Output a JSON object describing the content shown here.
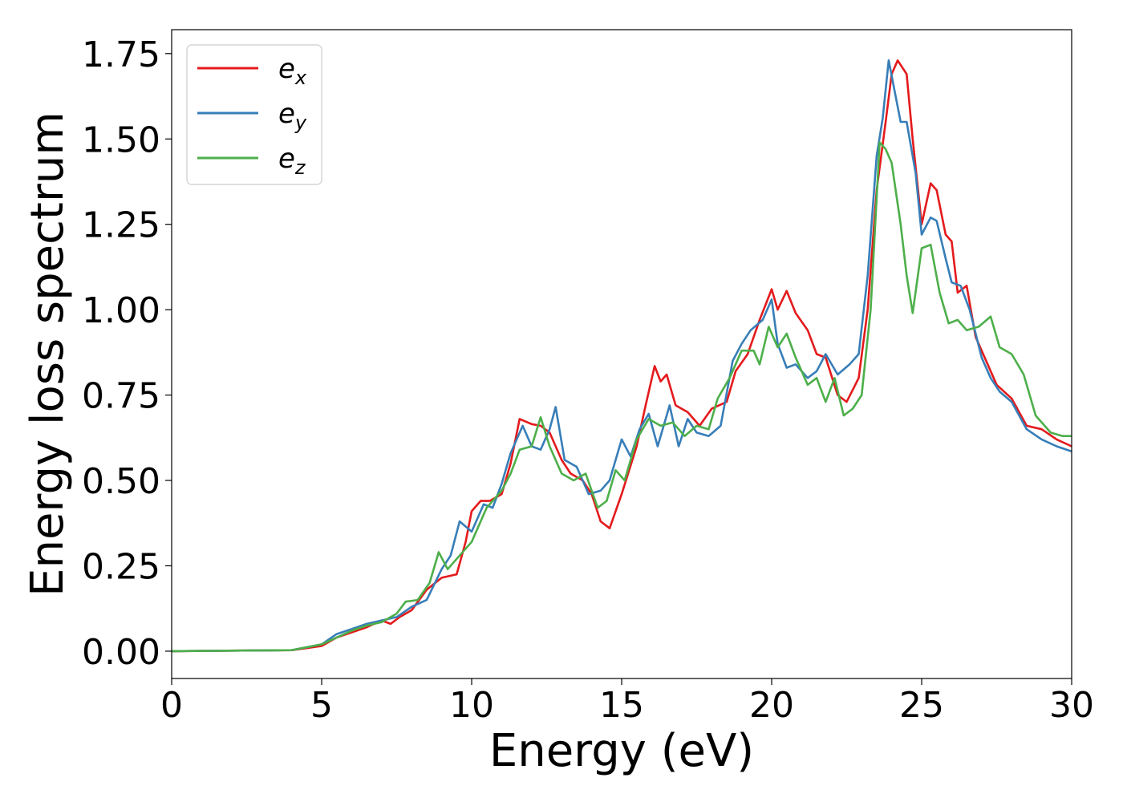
{
  "chart_data": {
    "type": "line",
    "title": "",
    "xlabel": "Energy (eV)",
    "ylabel": "Energy loss spectrum",
    "xlim": [
      0,
      30
    ],
    "ylim": [
      -0.08,
      1.82
    ],
    "xticks": [
      0,
      5,
      10,
      15,
      20,
      25,
      30
    ],
    "xtick_labels": [
      "0",
      "5",
      "10",
      "15",
      "20",
      "25",
      "30"
    ],
    "yticks": [
      0.0,
      0.25,
      0.5,
      0.75,
      1.0,
      1.25,
      1.5,
      1.75
    ],
    "ytick_labels": [
      "0.00",
      "0.25",
      "0.50",
      "0.75",
      "1.00",
      "1.25",
      "1.50",
      "1.75"
    ],
    "grid": false,
    "legend_position": "top-left",
    "series": [
      {
        "name": "e",
        "subscript": "x",
        "color": "#e41a1c",
        "points": [
          [
            0,
            0
          ],
          [
            4,
            0.003
          ],
          [
            5,
            0.015
          ],
          [
            5.5,
            0.04
          ],
          [
            6,
            0.055
          ],
          [
            6.5,
            0.07
          ],
          [
            7,
            0.09
          ],
          [
            7.3,
            0.08
          ],
          [
            7.6,
            0.1
          ],
          [
            8,
            0.12
          ],
          [
            8.5,
            0.18
          ],
          [
            9,
            0.215
          ],
          [
            9.5,
            0.225
          ],
          [
            9.8,
            0.32
          ],
          [
            10,
            0.41
          ],
          [
            10.3,
            0.44
          ],
          [
            10.6,
            0.44
          ],
          [
            11,
            0.46
          ],
          [
            11.3,
            0.55
          ],
          [
            11.6,
            0.68
          ],
          [
            12,
            0.665
          ],
          [
            12.3,
            0.66
          ],
          [
            12.6,
            0.64
          ],
          [
            13,
            0.56
          ],
          [
            13.3,
            0.52
          ],
          [
            13.7,
            0.5
          ],
          [
            14,
            0.46
          ],
          [
            14.3,
            0.38
          ],
          [
            14.6,
            0.36
          ],
          [
            15,
            0.46
          ],
          [
            15.5,
            0.6
          ],
          [
            15.8,
            0.72
          ],
          [
            16.1,
            0.835
          ],
          [
            16.3,
            0.79
          ],
          [
            16.5,
            0.81
          ],
          [
            16.8,
            0.72
          ],
          [
            17.2,
            0.7
          ],
          [
            17.6,
            0.66
          ],
          [
            18,
            0.71
          ],
          [
            18.5,
            0.73
          ],
          [
            18.8,
            0.82
          ],
          [
            19.2,
            0.87
          ],
          [
            19.6,
            0.97
          ],
          [
            20,
            1.06
          ],
          [
            20.2,
            1.0
          ],
          [
            20.5,
            1.055
          ],
          [
            20.8,
            0.99
          ],
          [
            21.2,
            0.94
          ],
          [
            21.5,
            0.87
          ],
          [
            21.8,
            0.86
          ],
          [
            22.2,
            0.75
          ],
          [
            22.5,
            0.73
          ],
          [
            22.9,
            0.8
          ],
          [
            23.2,
            1.0
          ],
          [
            23.5,
            1.35
          ],
          [
            23.8,
            1.55
          ],
          [
            24,
            1.69
          ],
          [
            24.2,
            1.73
          ],
          [
            24.5,
            1.69
          ],
          [
            24.7,
            1.5
          ],
          [
            25,
            1.25
          ],
          [
            25.3,
            1.37
          ],
          [
            25.5,
            1.35
          ],
          [
            25.8,
            1.22
          ],
          [
            26,
            1.2
          ],
          [
            26.2,
            1.05
          ],
          [
            26.5,
            1.07
          ],
          [
            26.8,
            0.92
          ],
          [
            27.2,
            0.84
          ],
          [
            27.5,
            0.78
          ],
          [
            28,
            0.74
          ],
          [
            28.5,
            0.66
          ],
          [
            29,
            0.65
          ],
          [
            29.5,
            0.62
          ],
          [
            30,
            0.6
          ]
        ]
      },
      {
        "name": "e",
        "subscript": "y",
        "color": "#377eb8",
        "points": [
          [
            0,
            0
          ],
          [
            4,
            0.003
          ],
          [
            5,
            0.02
          ],
          [
            5.5,
            0.05
          ],
          [
            6,
            0.065
          ],
          [
            6.5,
            0.08
          ],
          [
            7,
            0.09
          ],
          [
            7.5,
            0.1
          ],
          [
            8,
            0.13
          ],
          [
            8.5,
            0.15
          ],
          [
            9,
            0.24
          ],
          [
            9.3,
            0.28
          ],
          [
            9.6,
            0.38
          ],
          [
            10,
            0.35
          ],
          [
            10.4,
            0.43
          ],
          [
            10.7,
            0.42
          ],
          [
            11,
            0.49
          ],
          [
            11.3,
            0.58
          ],
          [
            11.7,
            0.66
          ],
          [
            12,
            0.6
          ],
          [
            12.3,
            0.59
          ],
          [
            12.6,
            0.65
          ],
          [
            12.8,
            0.715
          ],
          [
            13.1,
            0.56
          ],
          [
            13.5,
            0.54
          ],
          [
            13.9,
            0.46
          ],
          [
            14.3,
            0.47
          ],
          [
            14.6,
            0.5
          ],
          [
            15,
            0.62
          ],
          [
            15.3,
            0.57
          ],
          [
            15.6,
            0.65
          ],
          [
            15.9,
            0.695
          ],
          [
            16.2,
            0.6
          ],
          [
            16.6,
            0.72
          ],
          [
            16.9,
            0.6
          ],
          [
            17.2,
            0.68
          ],
          [
            17.5,
            0.64
          ],
          [
            17.9,
            0.63
          ],
          [
            18.3,
            0.66
          ],
          [
            18.7,
            0.85
          ],
          [
            19,
            0.9
          ],
          [
            19.3,
            0.94
          ],
          [
            19.7,
            0.97
          ],
          [
            20,
            1.03
          ],
          [
            20.2,
            0.9
          ],
          [
            20.5,
            0.83
          ],
          [
            20.8,
            0.84
          ],
          [
            21.2,
            0.8
          ],
          [
            21.5,
            0.82
          ],
          [
            21.8,
            0.87
          ],
          [
            22.2,
            0.81
          ],
          [
            22.6,
            0.84
          ],
          [
            22.9,
            0.87
          ],
          [
            23.2,
            1.1
          ],
          [
            23.5,
            1.45
          ],
          [
            23.7,
            1.56
          ],
          [
            23.9,
            1.73
          ],
          [
            24.1,
            1.64
          ],
          [
            24.3,
            1.55
          ],
          [
            24.5,
            1.55
          ],
          [
            24.8,
            1.4
          ],
          [
            25,
            1.22
          ],
          [
            25.3,
            1.27
          ],
          [
            25.5,
            1.26
          ],
          [
            25.8,
            1.15
          ],
          [
            26,
            1.08
          ],
          [
            26.3,
            1.07
          ],
          [
            26.6,
            1.0
          ],
          [
            27,
            0.86
          ],
          [
            27.3,
            0.8
          ],
          [
            27.6,
            0.76
          ],
          [
            28,
            0.73
          ],
          [
            28.5,
            0.65
          ],
          [
            29,
            0.62
          ],
          [
            29.5,
            0.6
          ],
          [
            30,
            0.585
          ]
        ]
      },
      {
        "name": "e",
        "subscript": "z",
        "color": "#4daf4a",
        "points": [
          [
            0,
            0
          ],
          [
            4,
            0.003
          ],
          [
            5,
            0.02
          ],
          [
            5.5,
            0.04
          ],
          [
            6,
            0.06
          ],
          [
            6.5,
            0.075
          ],
          [
            7,
            0.085
          ],
          [
            7.5,
            0.11
          ],
          [
            7.8,
            0.145
          ],
          [
            8.2,
            0.15
          ],
          [
            8.6,
            0.2
          ],
          [
            8.9,
            0.29
          ],
          [
            9.2,
            0.24
          ],
          [
            9.6,
            0.28
          ],
          [
            10,
            0.32
          ],
          [
            10.5,
            0.42
          ],
          [
            11,
            0.47
          ],
          [
            11.3,
            0.52
          ],
          [
            11.6,
            0.59
          ],
          [
            12,
            0.6
          ],
          [
            12.3,
            0.685
          ],
          [
            12.6,
            0.6
          ],
          [
            13,
            0.52
          ],
          [
            13.4,
            0.5
          ],
          [
            13.8,
            0.52
          ],
          [
            14.2,
            0.42
          ],
          [
            14.5,
            0.44
          ],
          [
            14.8,
            0.53
          ],
          [
            15.1,
            0.5
          ],
          [
            15.5,
            0.62
          ],
          [
            15.9,
            0.68
          ],
          [
            16.3,
            0.66
          ],
          [
            16.7,
            0.67
          ],
          [
            17.1,
            0.63
          ],
          [
            17.5,
            0.66
          ],
          [
            17.9,
            0.65
          ],
          [
            18.2,
            0.74
          ],
          [
            18.6,
            0.8
          ],
          [
            19,
            0.88
          ],
          [
            19.4,
            0.88
          ],
          [
            19.6,
            0.84
          ],
          [
            19.9,
            0.95
          ],
          [
            20.2,
            0.89
          ],
          [
            20.5,
            0.93
          ],
          [
            20.8,
            0.86
          ],
          [
            21.2,
            0.78
          ],
          [
            21.5,
            0.8
          ],
          [
            21.8,
            0.73
          ],
          [
            22.1,
            0.8
          ],
          [
            22.4,
            0.69
          ],
          [
            22.7,
            0.71
          ],
          [
            23,
            0.75
          ],
          [
            23.3,
            1.0
          ],
          [
            23.6,
            1.49
          ],
          [
            23.8,
            1.47
          ],
          [
            24,
            1.43
          ],
          [
            24.3,
            1.25
          ],
          [
            24.5,
            1.1
          ],
          [
            24.7,
            0.99
          ],
          [
            25,
            1.18
          ],
          [
            25.3,
            1.19
          ],
          [
            25.6,
            1.05
          ],
          [
            25.9,
            0.96
          ],
          [
            26.2,
            0.97
          ],
          [
            26.5,
            0.94
          ],
          [
            26.9,
            0.95
          ],
          [
            27.3,
            0.98
          ],
          [
            27.6,
            0.89
          ],
          [
            28,
            0.87
          ],
          [
            28.4,
            0.81
          ],
          [
            28.8,
            0.69
          ],
          [
            29.3,
            0.64
          ],
          [
            29.7,
            0.63
          ],
          [
            30,
            0.63
          ]
        ]
      }
    ]
  }
}
